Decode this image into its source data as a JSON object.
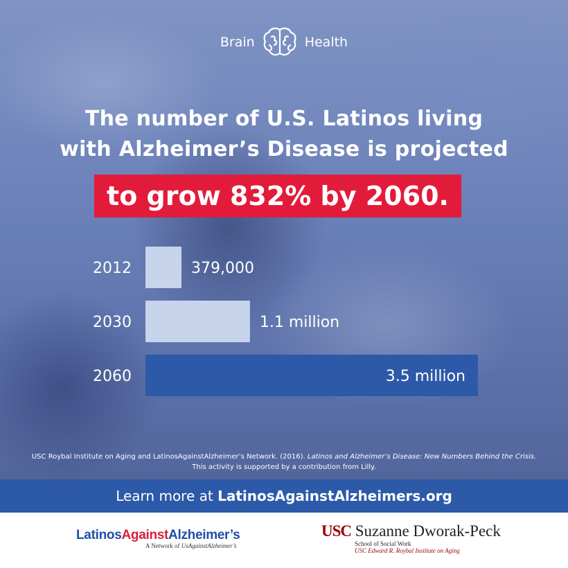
{
  "header": {
    "left": "Brain",
    "right": "Health",
    "icon": "brain-icon"
  },
  "headline": {
    "line1": "The number of U.S. Latinos living",
    "line2": "with Alzheimer’s Disease is projected",
    "highlight": "to grow 832% by 2060."
  },
  "chart_data": {
    "type": "bar",
    "orientation": "horizontal",
    "categories": [
      "2012",
      "2030",
      "2060"
    ],
    "values": [
      379000,
      1100000,
      3500000
    ],
    "value_labels": [
      "379,000",
      "1.1 million",
      "3.5 million"
    ],
    "colors": [
      "#c8d4ec",
      "#c8d4ec",
      "#2d5aa8"
    ],
    "label_positions": [
      "outside",
      "outside",
      "inside"
    ],
    "xlim": [
      0,
      3500000
    ],
    "grid": false,
    "title": "",
    "xlabel": "",
    "ylabel": ""
  },
  "source": {
    "prefix": "USC Roybal Institute on Aging and LatinosAgainstAlzheimer’s Network. (2016). ",
    "title": "Latinos and Alzheimer’s Disease: New Numbers Behind the Crisis.",
    "line2": "This activity is supported by a contribution from Lilly."
  },
  "cta": {
    "prefix": "Learn more at ",
    "link": "LatinosAgainstAlzheimers.org"
  },
  "footer": {
    "lad_part1": "Latinos",
    "lad_part2": "Against",
    "lad_part3": "Alzheimer’s",
    "lad_sub_prefix": "A Network of ",
    "lad_sub_italic": "UsAgainstAlzheimer’s",
    "usc_mark": "USC",
    "usc_name": "Suzanne Dworak-Peck",
    "usc_school": "School of Social Work",
    "usc_institute": "USC Edward R. Roybal Institute on Aging"
  },
  "colors": {
    "highlight": "#e31b3a",
    "accent_blue": "#2d5aa8",
    "light_bar": "#c8d4ec",
    "usc_red": "#990000"
  }
}
